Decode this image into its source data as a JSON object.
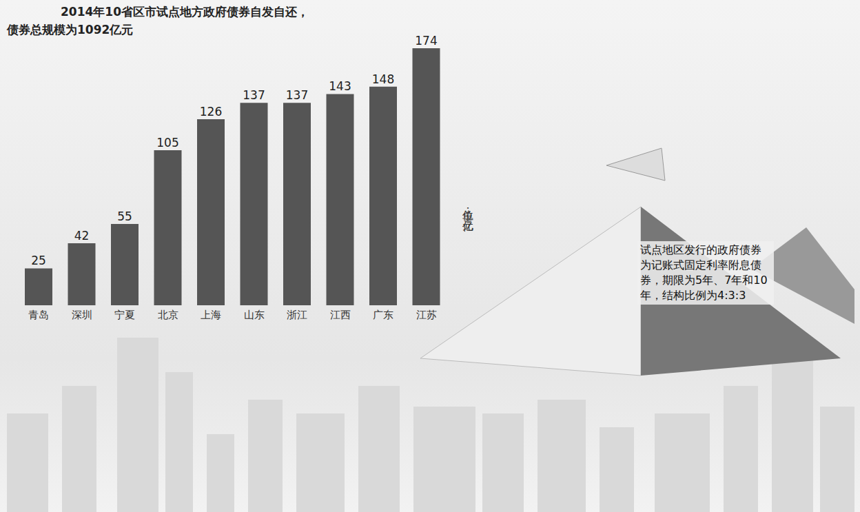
{
  "chart_data": {
    "type": "bar",
    "title": "2014年10省区市试点地方政府债券自发自还，",
    "subtitle": "债券总规模为1092亿元",
    "y_label": "单位：亿元",
    "annotations": [
      "试点地区发行的政府债券为记账式固定利率附息债券，期限为5年、7年和10年，结构比例为4:3:3"
    ],
    "categories": [
      "青岛",
      "深圳",
      "宁夏",
      "北京",
      "上海",
      "山东",
      "浙江",
      "江西",
      "广东",
      "江苏"
    ],
    "values": [
      25,
      42,
      55,
      105,
      126,
      137,
      137,
      143,
      148,
      174
    ],
    "color": "#555555",
    "ylim": [
      0,
      174
    ],
    "data_labels": true,
    "tick_labels": "x",
    "grid": false
  }
}
